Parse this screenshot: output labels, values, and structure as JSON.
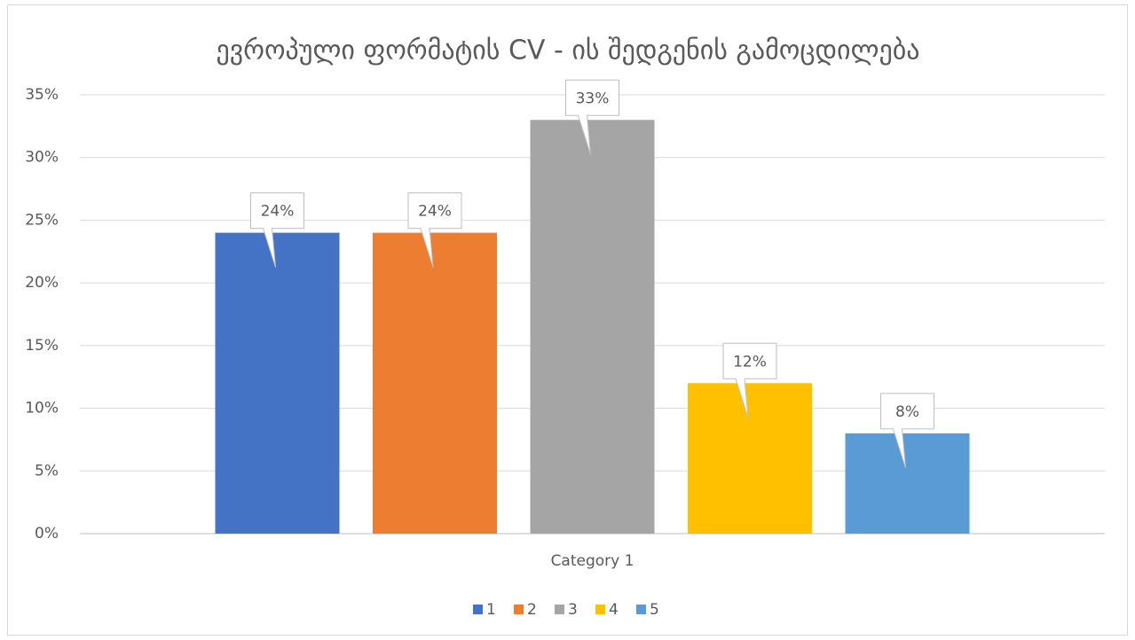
{
  "chart_data": {
    "type": "bar",
    "title": "ევროპული ფორმატის CV - ის შედგენის გამოცდილება",
    "categories": [
      "Category 1"
    ],
    "series": [
      {
        "name": "1",
        "color": "#4472c4",
        "values": [
          24
        ],
        "value_labels": [
          "24%"
        ]
      },
      {
        "name": "2",
        "color": "#ed7d31",
        "values": [
          24
        ],
        "value_labels": [
          "24%"
        ]
      },
      {
        "name": "3",
        "color": "#a5a5a5",
        "values": [
          33
        ],
        "value_labels": [
          "33%"
        ]
      },
      {
        "name": "4",
        "color": "#ffc000",
        "values": [
          12
        ],
        "value_labels": [
          "12%"
        ]
      },
      {
        "name": "5",
        "color": "#5b9bd5",
        "values": [
          8
        ],
        "value_labels": [
          "8%"
        ]
      }
    ],
    "ylim": [
      0,
      35
    ],
    "yticks": [
      {
        "value": 0,
        "label": "0%"
      },
      {
        "value": 5,
        "label": "5%"
      },
      {
        "value": 10,
        "label": "10%"
      },
      {
        "value": 15,
        "label": "15%"
      },
      {
        "value": 20,
        "label": "20%"
      },
      {
        "value": 25,
        "label": "25%"
      },
      {
        "value": 30,
        "label": "30%"
      },
      {
        "value": 35,
        "label": "35%"
      }
    ],
    "grid": true,
    "legend": "bottom"
  }
}
